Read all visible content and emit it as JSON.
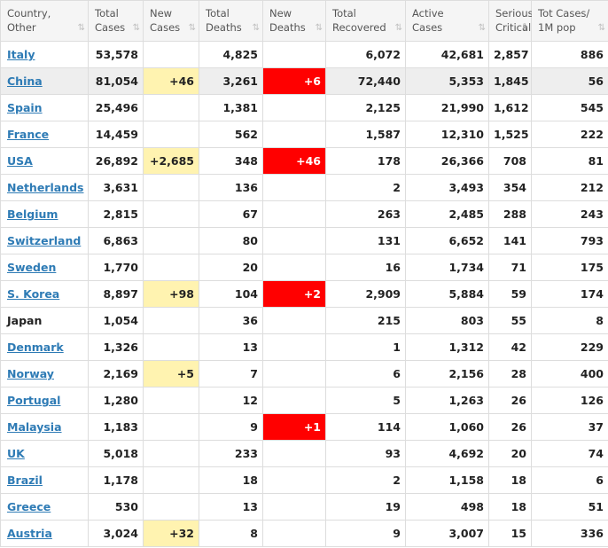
{
  "headers": [
    {
      "label": "Country,\nOther"
    },
    {
      "label": "Total\nCases"
    },
    {
      "label": "New\nCases"
    },
    {
      "label": "Total\nDeaths"
    },
    {
      "label": "New\nDeaths"
    },
    {
      "label": "Total\nRecovered"
    },
    {
      "label": "Active\nCases"
    },
    {
      "label": "Serious,\nCritical",
      "sorted": true
    },
    {
      "label": "Tot Cases/\n1M pop"
    }
  ],
  "sort_icon": "⇅",
  "sort_icon_active": "⇩",
  "colors": {
    "link": "#2e7bb5",
    "new_cases_bg": "#fff3b0",
    "new_deaths_bg": "#ff0000",
    "highlight_row": "#eeeeee"
  },
  "rows": [
    {
      "country": "Italy",
      "link": true,
      "total_cases": "53,578",
      "new_cases": "",
      "total_deaths": "4,825",
      "new_deaths": "",
      "total_recovered": "6,072",
      "active_cases": "42,681",
      "serious": "2,857",
      "per_million": "886"
    },
    {
      "country": "China",
      "link": true,
      "highlight": true,
      "total_cases": "81,054",
      "new_cases": "+46",
      "total_deaths": "3,261",
      "new_deaths": "+6",
      "total_recovered": "72,440",
      "active_cases": "5,353",
      "serious": "1,845",
      "per_million": "56"
    },
    {
      "country": "Spain",
      "link": true,
      "total_cases": "25,496",
      "new_cases": "",
      "total_deaths": "1,381",
      "new_deaths": "",
      "total_recovered": "2,125",
      "active_cases": "21,990",
      "serious": "1,612",
      "per_million": "545"
    },
    {
      "country": "France",
      "link": true,
      "total_cases": "14,459",
      "new_cases": "",
      "total_deaths": "562",
      "new_deaths": "",
      "total_recovered": "1,587",
      "active_cases": "12,310",
      "serious": "1,525",
      "per_million": "222"
    },
    {
      "country": "USA",
      "link": true,
      "total_cases": "26,892",
      "new_cases": "+2,685",
      "total_deaths": "348",
      "new_deaths": "+46",
      "total_recovered": "178",
      "active_cases": "26,366",
      "serious": "708",
      "per_million": "81"
    },
    {
      "country": "Netherlands",
      "link": true,
      "total_cases": "3,631",
      "new_cases": "",
      "total_deaths": "136",
      "new_deaths": "",
      "total_recovered": "2",
      "active_cases": "3,493",
      "serious": "354",
      "per_million": "212"
    },
    {
      "country": "Belgium",
      "link": true,
      "total_cases": "2,815",
      "new_cases": "",
      "total_deaths": "67",
      "new_deaths": "",
      "total_recovered": "263",
      "active_cases": "2,485",
      "serious": "288",
      "per_million": "243"
    },
    {
      "country": "Switzerland",
      "link": true,
      "total_cases": "6,863",
      "new_cases": "",
      "total_deaths": "80",
      "new_deaths": "",
      "total_recovered": "131",
      "active_cases": "6,652",
      "serious": "141",
      "per_million": "793"
    },
    {
      "country": "Sweden",
      "link": true,
      "total_cases": "1,770",
      "new_cases": "",
      "total_deaths": "20",
      "new_deaths": "",
      "total_recovered": "16",
      "active_cases": "1,734",
      "serious": "71",
      "per_million": "175"
    },
    {
      "country": "S. Korea",
      "link": true,
      "total_cases": "8,897",
      "new_cases": "+98",
      "total_deaths": "104",
      "new_deaths": "+2",
      "total_recovered": "2,909",
      "active_cases": "5,884",
      "serious": "59",
      "per_million": "174"
    },
    {
      "country": "Japan",
      "link": false,
      "total_cases": "1,054",
      "new_cases": "",
      "total_deaths": "36",
      "new_deaths": "",
      "total_recovered": "215",
      "active_cases": "803",
      "serious": "55",
      "per_million": "8"
    },
    {
      "country": "Denmark",
      "link": true,
      "total_cases": "1,326",
      "new_cases": "",
      "total_deaths": "13",
      "new_deaths": "",
      "total_recovered": "1",
      "active_cases": "1,312",
      "serious": "42",
      "per_million": "229"
    },
    {
      "country": "Norway",
      "link": true,
      "total_cases": "2,169",
      "new_cases": "+5",
      "total_deaths": "7",
      "new_deaths": "",
      "total_recovered": "6",
      "active_cases": "2,156",
      "serious": "28",
      "per_million": "400"
    },
    {
      "country": "Portugal",
      "link": true,
      "total_cases": "1,280",
      "new_cases": "",
      "total_deaths": "12",
      "new_deaths": "",
      "total_recovered": "5",
      "active_cases": "1,263",
      "serious": "26",
      "per_million": "126"
    },
    {
      "country": "Malaysia",
      "link": true,
      "total_cases": "1,183",
      "new_cases": "",
      "total_deaths": "9",
      "new_deaths": "+1",
      "total_recovered": "114",
      "active_cases": "1,060",
      "serious": "26",
      "per_million": "37"
    },
    {
      "country": "UK",
      "link": true,
      "total_cases": "5,018",
      "new_cases": "",
      "total_deaths": "233",
      "new_deaths": "",
      "total_recovered": "93",
      "active_cases": "4,692",
      "serious": "20",
      "per_million": "74"
    },
    {
      "country": "Brazil",
      "link": true,
      "total_cases": "1,178",
      "new_cases": "",
      "total_deaths": "18",
      "new_deaths": "",
      "total_recovered": "2",
      "active_cases": "1,158",
      "serious": "18",
      "per_million": "6"
    },
    {
      "country": "Greece",
      "link": true,
      "total_cases": "530",
      "new_cases": "",
      "total_deaths": "13",
      "new_deaths": "",
      "total_recovered": "19",
      "active_cases": "498",
      "serious": "18",
      "per_million": "51"
    },
    {
      "country": "Austria",
      "link": true,
      "total_cases": "3,024",
      "new_cases": "+32",
      "total_deaths": "8",
      "new_deaths": "",
      "total_recovered": "9",
      "active_cases": "3,007",
      "serious": "15",
      "per_million": "336"
    }
  ]
}
